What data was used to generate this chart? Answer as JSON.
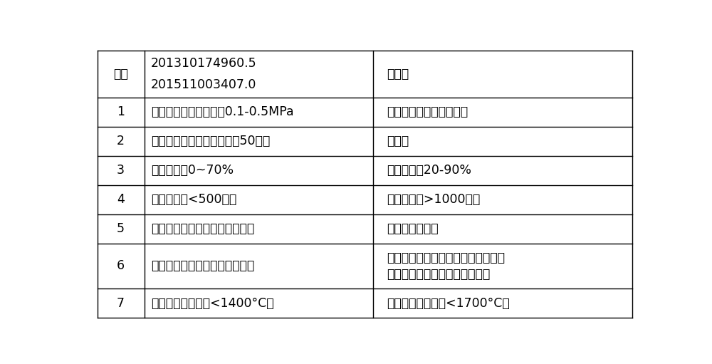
{
  "bg_color": "#ffffff",
  "border_color": "#000000",
  "text_color": "#000000",
  "col1_label": "序号",
  "col2_label_1": "201310174960.5",
  "col2_label_2": "201511003407.0",
  "col3_label": "本发明",
  "rows": [
    {
      "num": "1",
      "col2": "反应床弹化体系，压降0.1-0.5MPa",
      "col3": "无弹化剂床层，故无压降"
    },
    {
      "num": "2",
      "col2": "反应床的径向温差较大（吆50度）",
      "col3": "无温差"
    },
    {
      "num": "3",
      "col2": "甲烷转化率0~70%",
      "col3": "甲烷转化率20-90%"
    },
    {
      "num": "4",
      "col2": "弹化剂寿命<500小时",
      "col3": "弹化剂寿命>1000小时"
    },
    {
      "num": "5",
      "col2": "制备条件苛刻，弹化剂难于放大",
      "col3": "弹化剂无需放大"
    },
    {
      "num": "6",
      "col2": "无类似工业化装置，设计难度大",
      "col3_line1": "与乙烷裂解和加氢裂解的列管反应装",
      "col3_line2": "置相似直接套用，工业化难度小"
    },
    {
      "num": "7",
      "col2": "耐氧化还原温度（<1400°C）",
      "col3": "耐氧化还原温度（<1700°C）"
    }
  ]
}
